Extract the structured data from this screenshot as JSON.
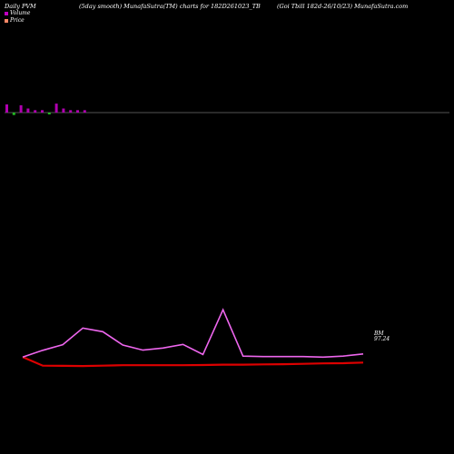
{
  "header": {
    "left": "Daily PVM",
    "center": "(5day smooth) MunafaSutra(TM) charts for 182D261023_TB",
    "right": "(Goi  Tbill 182d-26/10/23) MunafaSutra.com"
  },
  "legend": [
    {
      "label": "Volume",
      "color": "#c000c0"
    },
    {
      "label": "Price",
      "color": "#ff8866"
    }
  ],
  "colors": {
    "volume_up": "#b000b0",
    "volume_down": "#22bb22",
    "pvm_line": "#ee66ee",
    "price_line": "#dd0000",
    "zero_line": "#aaaaaa"
  },
  "chart_data": {
    "type": "line",
    "title": "",
    "series": [
      {
        "name": "Price",
        "values": [
          98.2,
          97.78,
          97.77,
          97.76,
          97.78,
          97.8,
          97.8,
          97.8,
          97.8,
          97.81,
          97.83,
          97.83,
          97.84,
          97.85,
          97.87,
          97.89,
          97.9,
          97.93
        ]
      },
      {
        "name": "PVM",
        "values": [
          98.2,
          98.54,
          98.82,
          99.64,
          99.46,
          98.8,
          98.55,
          98.65,
          98.83,
          98.33,
          100.55,
          98.25,
          98.23,
          98.23,
          98.23,
          98.2,
          98.25,
          98.36
        ]
      }
    ],
    "volume_bars": [
      {
        "value": 1.0,
        "direction": "up"
      },
      {
        "value": 0.5,
        "direction": "down"
      },
      {
        "value": 0.9,
        "direction": "up"
      },
      {
        "value": 0.5,
        "direction": "up"
      },
      {
        "value": 0.3,
        "direction": "up"
      },
      {
        "value": 0.3,
        "direction": "up"
      },
      {
        "value": 0.3,
        "direction": "down"
      },
      {
        "value": 1.1,
        "direction": "up"
      },
      {
        "value": 0.5,
        "direction": "up"
      },
      {
        "value": 0.3,
        "direction": "up"
      },
      {
        "value": 0.3,
        "direction": "up"
      },
      {
        "value": 0.3,
        "direction": "up"
      }
    ],
    "end_labels": {
      "line1": "BM",
      "line2": "97.24"
    },
    "ylim": [
      97.0,
      101.5
    ]
  }
}
